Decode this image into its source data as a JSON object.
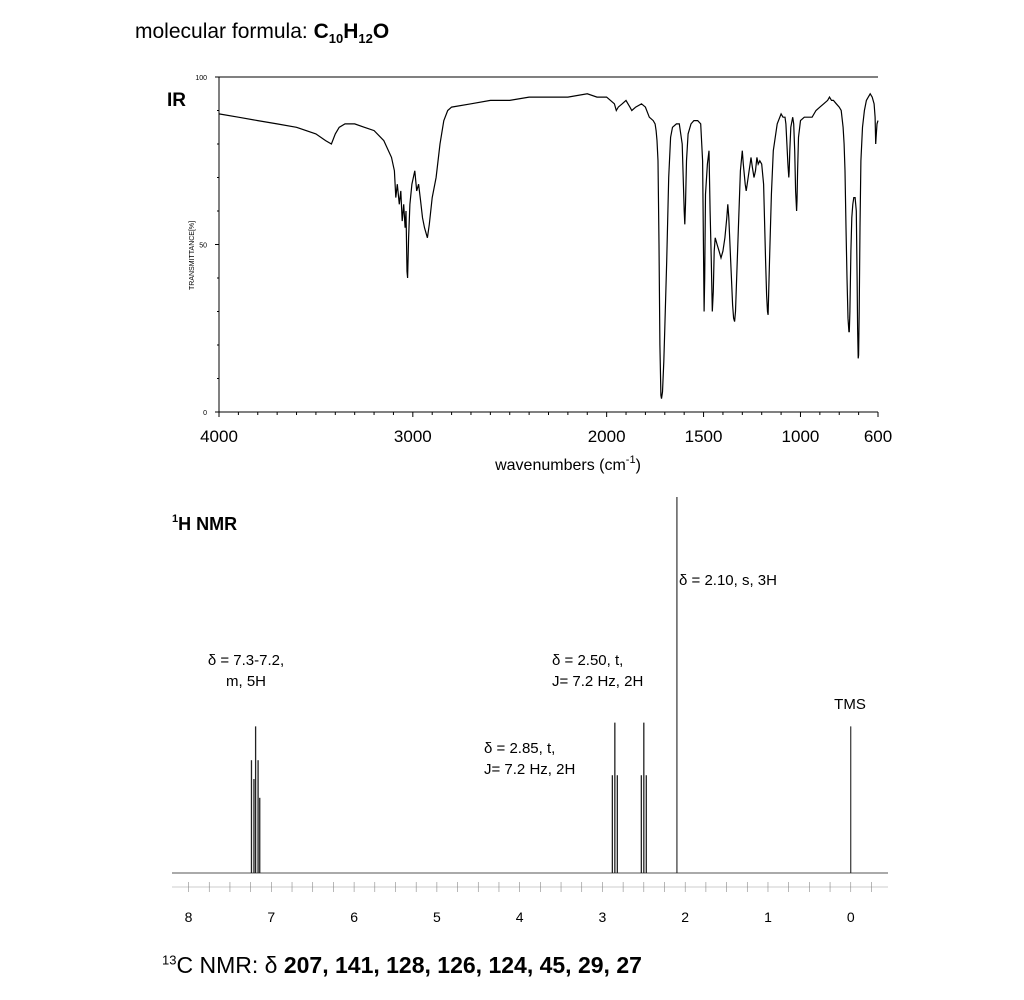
{
  "formula": {
    "prefix": "molecular formula: ",
    "parts": [
      {
        "t": "C",
        "sub": "10"
      },
      {
        "t": "H",
        "sub": "12"
      },
      {
        "t": "O",
        "sub": ""
      }
    ]
  },
  "carbon_nmr": {
    "sup": "13",
    "prefix": "C NMR: δ ",
    "values": "207, 141, 128, 126, 124, 45, 29, 27"
  },
  "chart_data": [
    {
      "type": "line",
      "title": "IR",
      "xlabel": "wavenumbers (cm",
      "xlabel_sup": "-1",
      "xlabel_suffix": ")",
      "ylabel": "TRANSMITTANCE[%]",
      "xlim": [
        4000,
        600
      ],
      "ylim": [
        0,
        100
      ],
      "x_reversed": true,
      "x_ticks": [
        4000,
        3000,
        2000,
        1500,
        1000,
        600
      ],
      "x_tick_labels": [
        "4000",
        "3000",
        "2000",
        "1500",
        "1000",
        "600"
      ],
      "y_ticks": [
        0,
        50,
        100
      ],
      "y_tick_labels": [
        "0",
        "50",
        "100"
      ],
      "grid": false,
      "series": [
        {
          "color": "#000000",
          "points": [
            [
              4000,
              89
            ],
            [
              3900,
              88
            ],
            [
              3800,
              87
            ],
            [
              3700,
              86
            ],
            [
              3600,
              85
            ],
            [
              3500,
              83
            ],
            [
              3450,
              81
            ],
            [
              3420,
              80
            ],
            [
              3400,
              83
            ],
            [
              3380,
              85
            ],
            [
              3350,
              86
            ],
            [
              3300,
              86
            ],
            [
              3250,
              85
            ],
            [
              3200,
              84
            ],
            [
              3150,
              81
            ],
            [
              3110,
              76
            ],
            [
              3095,
              72
            ],
            [
              3088,
              64
            ],
            [
              3080,
              68
            ],
            [
              3070,
              62
            ],
            [
              3062,
              66
            ],
            [
              3055,
              57
            ],
            [
              3047,
              62
            ],
            [
              3040,
              55
            ],
            [
              3035,
              60
            ],
            [
              3030,
              42
            ],
            [
              3027,
              40
            ],
            [
              3022,
              52
            ],
            [
              3015,
              62
            ],
            [
              3005,
              68
            ],
            [
              2990,
              72
            ],
            [
              2980,
              66
            ],
            [
              2970,
              68
            ],
            [
              2960,
              63
            ],
            [
              2950,
              58
            ],
            [
              2940,
              55
            ],
            [
              2925,
              52
            ],
            [
              2915,
              56
            ],
            [
              2900,
              64
            ],
            [
              2880,
              70
            ],
            [
              2860,
              80
            ],
            [
              2840,
              87
            ],
            [
              2820,
              90
            ],
            [
              2800,
              91
            ],
            [
              2700,
              92
            ],
            [
              2600,
              93
            ],
            [
              2500,
              93
            ],
            [
              2400,
              94
            ],
            [
              2300,
              94
            ],
            [
              2200,
              94
            ],
            [
              2100,
              95
            ],
            [
              2050,
              94
            ],
            [
              2000,
              94
            ],
            [
              1960,
              92
            ],
            [
              1950,
              90
            ],
            [
              1940,
              91
            ],
            [
              1920,
              92
            ],
            [
              1900,
              93
            ],
            [
              1880,
              91
            ],
            [
              1870,
              90
            ],
            [
              1850,
              91
            ],
            [
              1820,
              92
            ],
            [
              1800,
              91
            ],
            [
              1780,
              88
            ],
            [
              1760,
              87
            ],
            [
              1750,
              86
            ],
            [
              1745,
              84
            ],
            [
              1740,
              81
            ],
            [
              1735,
              75
            ],
            [
              1730,
              50
            ],
            [
              1725,
              20
            ],
            [
              1720,
              5
            ],
            [
              1717,
              4
            ],
            [
              1712,
              6
            ],
            [
              1705,
              15
            ],
            [
              1700,
              25
            ],
            [
              1690,
              45
            ],
            [
              1680,
              70
            ],
            [
              1670,
              82
            ],
            [
              1660,
              85
            ],
            [
              1640,
              86
            ],
            [
              1625,
              86
            ],
            [
              1610,
              80
            ],
            [
              1605,
              70
            ],
            [
              1600,
              60
            ],
            [
              1597,
              56
            ],
            [
              1593,
              62
            ],
            [
              1588,
              75
            ],
            [
              1580,
              83
            ],
            [
              1565,
              86
            ],
            [
              1550,
              87
            ],
            [
              1530,
              87
            ],
            [
              1515,
              86
            ],
            [
              1505,
              75
            ],
            [
              1500,
              45
            ],
            [
              1497,
              30
            ],
            [
              1494,
              40
            ],
            [
              1490,
              65
            ],
            [
              1480,
              74
            ],
            [
              1472,
              78
            ],
            [
              1466,
              60
            ],
            [
              1460,
              45
            ],
            [
              1455,
              30
            ],
            [
              1450,
              36
            ],
            [
              1445,
              48
            ],
            [
              1440,
              52
            ],
            [
              1430,
              50
            ],
            [
              1420,
              48
            ],
            [
              1410,
              46
            ],
            [
              1400,
              48
            ],
            [
              1390,
              52
            ],
            [
              1380,
              58
            ],
            [
              1375,
              62
            ],
            [
              1370,
              58
            ],
            [
              1360,
              45
            ],
            [
              1350,
              32
            ],
            [
              1345,
              28
            ],
            [
              1340,
              27
            ],
            [
              1335,
              30
            ],
            [
              1320,
              55
            ],
            [
              1310,
              72
            ],
            [
              1300,
              78
            ],
            [
              1295,
              74
            ],
            [
              1285,
              68
            ],
            [
              1280,
              66
            ],
            [
              1275,
              68
            ],
            [
              1265,
              72
            ],
            [
              1260,
              74
            ],
            [
              1255,
              76
            ],
            [
              1248,
              73
            ],
            [
              1240,
              70
            ],
            [
              1232,
              72
            ],
            [
              1225,
              76
            ],
            [
              1218,
              74
            ],
            [
              1210,
              75
            ],
            [
              1200,
              74
            ],
            [
              1190,
              68
            ],
            [
              1180,
              45
            ],
            [
              1175,
              35
            ],
            [
              1170,
              30
            ],
            [
              1167,
              29
            ],
            [
              1160,
              45
            ],
            [
              1150,
              65
            ],
            [
              1140,
              78
            ],
            [
              1120,
              86
            ],
            [
              1100,
              89
            ],
            [
              1090,
              88
            ],
            [
              1080,
              88
            ],
            [
              1075,
              86
            ],
            [
              1070,
              80
            ],
            [
              1065,
              74
            ],
            [
              1060,
              70
            ],
            [
              1058,
              72
            ],
            [
              1055,
              78
            ],
            [
              1050,
              85
            ],
            [
              1040,
              88
            ],
            [
              1035,
              86
            ],
            [
              1030,
              78
            ],
            [
              1025,
              66
            ],
            [
              1020,
              60
            ],
            [
              1018,
              63
            ],
            [
              1015,
              72
            ],
            [
              1010,
              82
            ],
            [
              1000,
              87
            ],
            [
              980,
              88
            ],
            [
              960,
              88
            ],
            [
              940,
              88
            ],
            [
              920,
              90
            ],
            [
              900,
              91
            ],
            [
              880,
              92
            ],
            [
              860,
              93
            ],
            [
              850,
              94
            ],
            [
              840,
              93
            ],
            [
              830,
              93
            ],
            [
              815,
              92
            ],
            [
              800,
              91
            ],
            [
              790,
              90
            ],
            [
              780,
              85
            ],
            [
              775,
              80
            ],
            [
              770,
              72
            ],
            [
              765,
              55
            ],
            [
              760,
              40
            ],
            [
              755,
              28
            ],
            [
              750,
              24
            ],
            [
              748,
              24
            ],
            [
              745,
              30
            ],
            [
              740,
              48
            ],
            [
              735,
              58
            ],
            [
              730,
              62
            ],
            [
              725,
              64
            ],
            [
              718,
              64
            ],
            [
              712,
              60
            ],
            [
              708,
              40
            ],
            [
              705,
              25
            ],
            [
              702,
              16
            ],
            [
              700,
              17
            ],
            [
              697,
              30
            ],
            [
              693,
              55
            ],
            [
              688,
              75
            ],
            [
              680,
              85
            ],
            [
              670,
              90
            ],
            [
              660,
              93
            ],
            [
              650,
              94
            ],
            [
              640,
              95
            ],
            [
              630,
              94
            ],
            [
              620,
              92
            ],
            [
              615,
              88
            ],
            [
              612,
              80
            ],
            [
              610,
              82
            ],
            [
              605,
              86
            ],
            [
              600,
              87
            ]
          ]
        }
      ]
    },
    {
      "type": "line",
      "title": "H NMR",
      "title_sup": "1",
      "xlabel": "",
      "ylabel": "",
      "xlim": [
        8.2,
        -0.45
      ],
      "x_reversed": true,
      "x_ticks": [
        8,
        7,
        6,
        5,
        4,
        3,
        2,
        1,
        0
      ],
      "x_tick_labels": [
        "8",
        "7",
        "6",
        "5",
        "4",
        "3",
        "2",
        "1",
        "0"
      ],
      "grid": false,
      "peaks": [
        {
          "shift": 7.24,
          "rel_height": 0.3,
          "mult": "m"
        },
        {
          "shift": 7.21,
          "rel_height": 0.25,
          "mult": "m"
        },
        {
          "shift": 7.19,
          "rel_height": 0.39,
          "mult": "m"
        },
        {
          "shift": 7.16,
          "rel_height": 0.3,
          "mult": "m"
        },
        {
          "shift": 7.14,
          "rel_height": 0.2,
          "mult": "m"
        },
        {
          "shift": 2.88,
          "rel_height": 0.26,
          "mult": "t"
        },
        {
          "shift": 2.85,
          "rel_height": 0.4,
          "mult": "t"
        },
        {
          "shift": 2.82,
          "rel_height": 0.26,
          "mult": "t"
        },
        {
          "shift": 2.53,
          "rel_height": 0.26,
          "mult": "t"
        },
        {
          "shift": 2.5,
          "rel_height": 0.4,
          "mult": "t"
        },
        {
          "shift": 2.47,
          "rel_height": 0.26,
          "mult": "t"
        },
        {
          "shift": 2.1,
          "rel_height": 1.0,
          "mult": "s"
        },
        {
          "shift": 0.0,
          "rel_height": 0.39,
          "mult": "s"
        }
      ],
      "annotations": [
        {
          "id": "a1",
          "lines": [
            "δ = 7.3-7.2,",
            "m, 5H"
          ]
        },
        {
          "id": "a2",
          "lines": [
            "δ = 2.85, t,",
            "J= 7.2 Hz, 2H"
          ]
        },
        {
          "id": "a3",
          "lines": [
            "δ = 2.50, t,",
            "J= 7.2 Hz, 2H"
          ]
        },
        {
          "id": "a4",
          "lines": [
            "δ = 2.10, s, 3H"
          ]
        },
        {
          "id": "a5",
          "lines": [
            "TMS"
          ]
        }
      ]
    }
  ]
}
